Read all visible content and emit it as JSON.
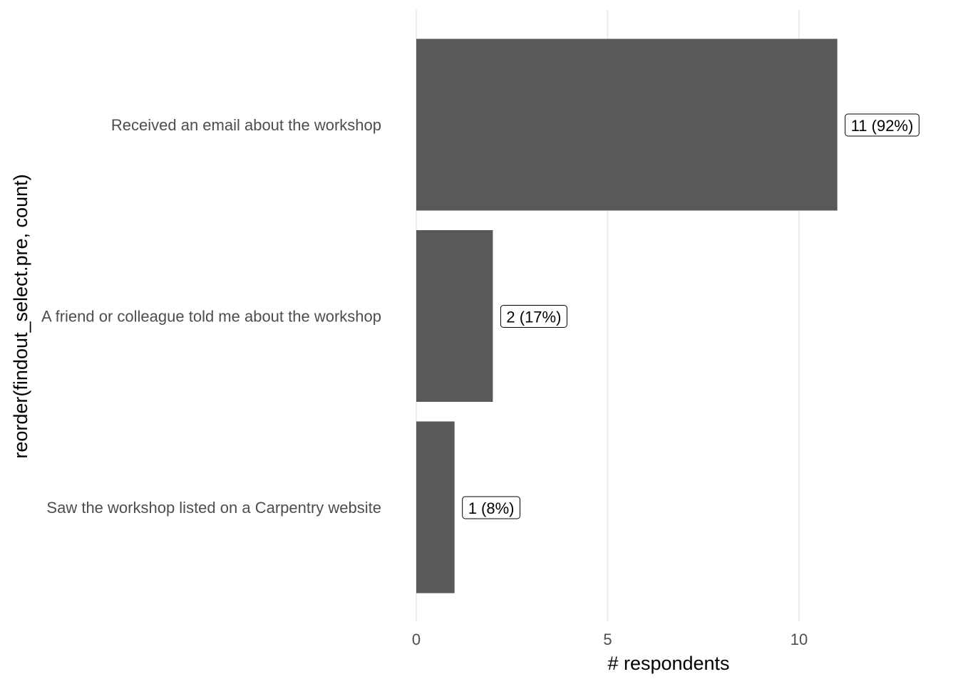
{
  "chart_data": {
    "type": "bar",
    "orientation": "horizontal",
    "categories": [
      "Received an email about the workshop",
      "A friend or colleague told me about the workshop",
      "Saw the workshop listed on a Carpentry website"
    ],
    "values": [
      11,
      2,
      1
    ],
    "data_labels": [
      "11 (92%)",
      "2 (17%)",
      "1 (8%)"
    ],
    "title": "",
    "xlabel": "# respondents",
    "ylabel": "reorder(findout_select.pre, count)",
    "xlim": [
      0,
      13
    ],
    "xticks": [
      0,
      5,
      10
    ],
    "xtick_labels": [
      "0",
      "5",
      "10"
    ],
    "grid": true,
    "bar_color": "#595959",
    "grid_color": "#ebebeb"
  }
}
